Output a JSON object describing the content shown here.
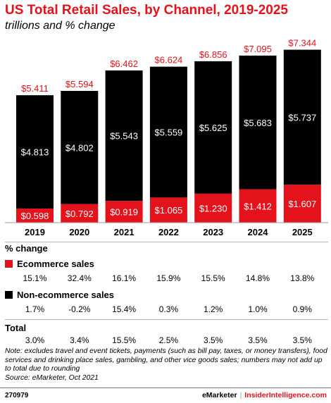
{
  "title": "US Total Retail Sales, by Channel, 2019-2025",
  "subtitle": "trillions and % change",
  "chart_data": {
    "type": "bar",
    "stacked": true,
    "categories": [
      "2019",
      "2020",
      "2021",
      "2022",
      "2023",
      "2024",
      "2025"
    ],
    "series": [
      {
        "name": "Ecommerce sales",
        "values": [
          0.598,
          0.792,
          0.919,
          1.065,
          1.23,
          1.412,
          1.607
        ],
        "labels": [
          "$0.598",
          "$0.792",
          "$0.919",
          "$1.065",
          "$1.230",
          "$1.412",
          "$1.607"
        ],
        "color": "#e3121b"
      },
      {
        "name": "Non-ecommerce sales",
        "values": [
          4.813,
          4.802,
          5.543,
          5.559,
          5.625,
          5.683,
          5.737
        ],
        "labels": [
          "$4.813",
          "$4.802",
          "$5.543",
          "$5.559",
          "$5.625",
          "$5.683",
          "$5.737"
        ],
        "color": "#000000"
      }
    ],
    "totals": [
      5.411,
      5.594,
      6.462,
      6.624,
      6.856,
      7.095,
      7.344
    ],
    "total_labels": [
      "$5.411",
      "$5.594",
      "$6.462",
      "$6.624",
      "$6.856",
      "$7.095",
      "$7.344"
    ],
    "ylim": [
      0,
      7.6
    ]
  },
  "table": {
    "header": "% change",
    "ecommerce": {
      "label": "Ecommerce sales",
      "values": [
        "15.1%",
        "32.4%",
        "16.1%",
        "15.9%",
        "15.5%",
        "14.8%",
        "13.8%"
      ]
    },
    "non_ecommerce": {
      "label": "Non-ecommerce sales",
      "values": [
        "1.7%",
        "-0.2%",
        "15.4%",
        "0.3%",
        "1.2%",
        "1.0%",
        "0.9%"
      ]
    },
    "total": {
      "label": "Total",
      "values": [
        "3.0%",
        "3.4%",
        "15.5%",
        "2.5%",
        "3.5%",
        "3.5%",
        "3.5%"
      ]
    }
  },
  "note": "Note: excludes travel and event tickets, payments (such as bill pay, taxes, or money transfers), food services and drinking place sales, gambling, and other vice goods sales; numbers may not add up to total due to rounding",
  "source": "Source: eMarketer, Oct 2021",
  "footer": {
    "code": "270979",
    "brand": "eMarketer",
    "separator": "|",
    "site": "InsiderIntelligence.com"
  },
  "colors": {
    "accent": "#e3121b",
    "bar": "#000000",
    "text": "#000000"
  }
}
